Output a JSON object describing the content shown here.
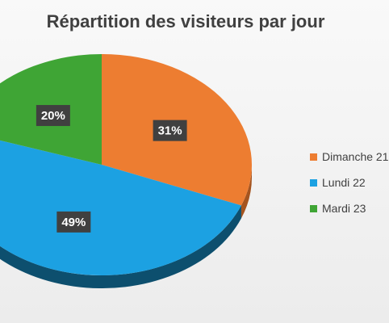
{
  "chart_data": {
    "type": "pie",
    "title": "Répartition des visiteurs par jour",
    "slices": [
      {
        "label": "Dimanche 21",
        "value": 31,
        "value_label": "31%",
        "color": "#ED7D31",
        "side_color": "#a5541f"
      },
      {
        "label": "Lundi 22",
        "value": 49,
        "value_label": "49%",
        "color": "#1CA1E2",
        "side_color": "#0d4f6e"
      },
      {
        "label": "Mardi 23",
        "value": 20,
        "value_label": "20%",
        "color": "#3FA535",
        "side_color": "#25661f"
      }
    ],
    "legend_position": "right"
  }
}
